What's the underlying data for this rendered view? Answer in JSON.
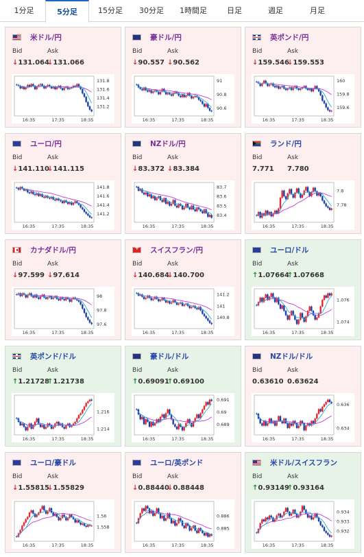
{
  "tabs": [
    {
      "label": "1分足"
    },
    {
      "label": "5分足",
      "active": true
    },
    {
      "label": "15分足"
    },
    {
      "label": "30分足"
    },
    {
      "label": "1時間足"
    },
    {
      "label": "日足"
    },
    {
      "label": "週足"
    },
    {
      "label": "月足"
    }
  ],
  "common": {
    "bid_label": "Bid",
    "ask_label": "Ask",
    "x_ticks": [
      "16:35",
      "17:35",
      "18:35"
    ]
  },
  "colors": {
    "down_bg": "#fdeef0",
    "up_bg": "#e8f3e8",
    "down_arrow": "#d42a2a",
    "up_arrow": "#1c8a2c",
    "bull_candle": "#e3262f",
    "bear_candle": "#1a3fa6",
    "ma_long": "#c23bd4",
    "ma_short": "#2aa7d8"
  },
  "cards": [
    {
      "pair": "米ドル/円",
      "flag": "us",
      "pair_color": "purple",
      "trend": "down",
      "bid": "131.064",
      "ask": "131.066",
      "bid_arrow": "↓",
      "ask_arrow": "↓",
      "y_ticks": [
        "131.8",
        "131.6",
        "131.4",
        "131.2"
      ],
      "series": [
        131.7,
        131.68,
        131.62,
        131.66,
        131.6,
        131.64,
        131.7,
        131.66,
        131.72,
        131.68,
        131.6,
        131.66,
        131.7,
        131.72,
        131.68,
        131.62,
        131.66,
        131.7,
        131.66,
        131.62,
        131.66,
        131.6,
        131.64,
        131.68,
        131.62,
        131.58,
        131.64,
        131.66,
        131.6,
        131.62,
        131.64,
        131.68,
        131.66,
        131.72,
        131.66,
        131.6,
        131.5,
        131.42,
        131.3,
        131.2,
        131.12,
        131.08
      ]
    },
    {
      "pair": "豪ドル/円",
      "flag": "au",
      "pair_color": "purple",
      "trend": "down",
      "bid": "90.557",
      "ask": "90.562",
      "bid_arrow": "↓",
      "ask_arrow": "↓",
      "y_ticks": [
        "91",
        "90.8",
        "90.6"
      ],
      "series": [
        90.94,
        90.9,
        90.88,
        90.86,
        90.9,
        90.86,
        90.84,
        90.86,
        90.82,
        90.84,
        90.86,
        90.84,
        90.8,
        90.84,
        90.88,
        90.84,
        90.8,
        90.82,
        90.8,
        90.78,
        90.82,
        90.84,
        90.82,
        90.78,
        90.76,
        90.8,
        90.76,
        90.78,
        90.82,
        90.78,
        90.74,
        90.76,
        90.78,
        90.76,
        90.72,
        90.7,
        90.66,
        90.62,
        90.66,
        90.6,
        90.56,
        90.55
      ]
    },
    {
      "pair": "英ポンド/円",
      "flag": "gb",
      "pair_color": "purple",
      "trend": "down",
      "bid": "159.546",
      "ask": "159.553",
      "bid_arrow": "↓",
      "ask_arrow": "↓",
      "y_ticks": [
        "160",
        "159.8",
        "159.6"
      ],
      "series": [
        159.98,
        159.96,
        159.92,
        159.96,
        160.0,
        159.96,
        159.92,
        159.94,
        159.96,
        159.92,
        159.9,
        159.92,
        159.88,
        159.9,
        159.92,
        159.88,
        159.86,
        159.88,
        159.9,
        159.86,
        159.9,
        159.92,
        159.88,
        159.86,
        159.88,
        159.9,
        159.92,
        159.88,
        159.86,
        159.88,
        159.84,
        159.88,
        159.92,
        159.88,
        159.84,
        159.78,
        159.7,
        159.66,
        159.6,
        159.56,
        159.54,
        159.55
      ]
    },
    {
      "pair": "ユーロ/円",
      "flag": "eu",
      "pair_color": "purple",
      "trend": "down",
      "bid": "141.110",
      "ask": "141.115",
      "bid_arrow": "↓",
      "ask_arrow": "↓",
      "y_ticks": [
        "141.8",
        "141.6",
        "141.4",
        "141.2"
      ],
      "series": [
        141.78,
        141.74,
        141.8,
        141.76,
        141.72,
        141.74,
        141.68,
        141.66,
        141.7,
        141.64,
        141.62,
        141.66,
        141.6,
        141.64,
        141.58,
        141.56,
        141.6,
        141.56,
        141.54,
        141.58,
        141.52,
        141.5,
        141.54,
        141.5,
        141.48,
        141.44,
        141.5,
        141.46,
        141.42,
        141.46,
        141.4,
        141.44,
        141.48,
        141.44,
        141.4,
        141.34,
        141.3,
        141.24,
        141.2,
        141.16,
        141.12,
        141.11
      ]
    },
    {
      "pair": "NZドル/円",
      "flag": "nz",
      "pair_color": "purple",
      "trend": "down",
      "bid": "83.372",
      "ask": "83.384",
      "bid_arrow": "↓",
      "ask_arrow": "↓",
      "y_ticks": [
        "83.7",
        "83.6",
        "83.5",
        "83.4"
      ],
      "series": [
        83.7,
        83.66,
        83.68,
        83.64,
        83.62,
        83.64,
        83.6,
        83.62,
        83.58,
        83.6,
        83.56,
        83.58,
        83.6,
        83.56,
        83.54,
        83.58,
        83.52,
        83.54,
        83.5,
        83.52,
        83.56,
        83.5,
        83.48,
        83.52,
        83.5,
        83.46,
        83.48,
        83.52,
        83.48,
        83.46,
        83.5,
        83.46,
        83.44,
        83.48,
        83.46,
        83.44,
        83.42,
        83.46,
        83.42,
        83.38,
        83.4,
        83.37
      ]
    },
    {
      "pair": "ランド/円",
      "flag": "za",
      "pair_color": "blue",
      "trend": "neutral",
      "bid": "7.771",
      "ask": "7.780",
      "bid_arrow": "",
      "ask_arrow": "",
      "y_ticks": [
        "7.8",
        "7.78"
      ],
      "series": [
        7.765,
        7.77,
        7.762,
        7.768,
        7.765,
        7.772,
        7.766,
        7.77,
        7.764,
        7.768,
        7.772,
        7.768,
        7.775,
        7.79,
        7.8,
        7.792,
        7.788,
        7.796,
        7.802,
        7.795,
        7.79,
        7.797,
        7.803,
        7.796,
        7.79,
        7.794,
        7.8,
        7.805,
        7.798,
        7.792,
        7.798,
        7.804,
        7.799,
        7.793,
        7.797,
        7.792,
        7.786,
        7.782,
        7.778,
        7.776,
        7.773,
        7.775
      ]
    },
    {
      "pair": "カナダドル/円",
      "flag": "ca",
      "pair_color": "purple",
      "trend": "down",
      "bid": "97.599",
      "ask": "97.614",
      "bid_arrow": "↓",
      "ask_arrow": "↓",
      "y_ticks": [
        "98",
        "97.8",
        "97.6"
      ],
      "series": [
        98.02,
        98.04,
        98.0,
        98.04,
        98.02,
        97.98,
        98.02,
        98.04,
        98.0,
        97.98,
        98.02,
        97.98,
        97.96,
        98.0,
        98.02,
        97.98,
        97.96,
        97.98,
        98.0,
        97.96,
        97.98,
        98.0,
        97.96,
        97.94,
        97.98,
        97.96,
        97.94,
        97.98,
        97.96,
        97.92,
        97.96,
        97.98,
        97.96,
        97.94,
        97.92,
        97.88,
        97.82,
        97.76,
        97.7,
        97.66,
        97.62,
        97.6
      ]
    },
    {
      "pair": "スイスフラン/円",
      "flag": "ch",
      "pair_color": "purple",
      "trend": "down",
      "bid": "140.684",
      "ask": "140.700",
      "bid_arrow": "↓",
      "ask_arrow": "↓",
      "y_ticks": [
        "141.2",
        "141",
        "140.8"
      ],
      "series": [
        141.22,
        141.18,
        141.2,
        141.16,
        141.12,
        141.14,
        141.18,
        141.14,
        141.1,
        141.12,
        141.16,
        141.12,
        141.08,
        141.1,
        141.14,
        141.1,
        141.06,
        141.08,
        141.04,
        141.06,
        141.1,
        141.06,
        141.02,
        141.04,
        141.06,
        141.0,
        141.02,
        141.04,
        141.0,
        140.96,
        140.98,
        141.0,
        140.96,
        140.94,
        140.98,
        140.92,
        140.86,
        140.82,
        140.78,
        140.74,
        140.7,
        140.68
      ]
    },
    {
      "pair": "ユーロ/ドル",
      "flag": "eu",
      "pair_color": "blue",
      "trend": "up",
      "bid": "1.07664",
      "ask": "1.07668",
      "bid_arrow": "↑",
      "ask_arrow": "↑",
      "y_ticks": [
        "1.076",
        "1.074"
      ],
      "series": [
        1.0755,
        1.0758,
        1.0762,
        1.0758,
        1.0762,
        1.0765,
        1.076,
        1.0763,
        1.0766,
        1.0762,
        1.0758,
        1.0762,
        1.0756,
        1.0752,
        1.0755,
        1.075,
        1.0746,
        1.0742,
        1.0746,
        1.075,
        1.0746,
        1.0742,
        1.0738,
        1.0742,
        1.0748,
        1.0744,
        1.074,
        1.0745,
        1.075,
        1.0754,
        1.075,
        1.0746,
        1.0742,
        1.0744,
        1.0748,
        1.0754,
        1.076,
        1.0764,
        1.0762,
        1.0766,
        1.0764,
        1.0766
      ]
    },
    {
      "pair": "英ポンド/ドル",
      "flag": "gb",
      "pair_color": "blue",
      "trend": "up",
      "bid": "1.21728",
      "ask": "1.21738",
      "bid_arrow": "↑",
      "ask_arrow": "↑",
      "y_ticks": [
        "1.216",
        "1.214"
      ],
      "series": [
        1.2152,
        1.2148,
        1.2144,
        1.2146,
        1.2142,
        1.2138,
        1.2142,
        1.2146,
        1.214,
        1.2144,
        1.2148,
        1.2152,
        1.2146,
        1.2142,
        1.2144,
        1.214,
        1.2142,
        1.2146,
        1.2144,
        1.214,
        1.2142,
        1.2146,
        1.2148,
        1.2144,
        1.2146,
        1.2142,
        1.214,
        1.2144,
        1.2146,
        1.2142,
        1.2144,
        1.2146,
        1.2148,
        1.2152,
        1.2156,
        1.2158,
        1.2162,
        1.2166,
        1.217,
        1.2172,
        1.2174,
        1.2173
      ]
    },
    {
      "pair": "豪ドル/ドル",
      "flag": "au",
      "pair_color": "blue",
      "trend": "up",
      "bid": "0.69091",
      "ask": "0.69100",
      "bid_arrow": "↑",
      "ask_arrow": "↑",
      "y_ticks": [
        "0.691",
        "0.69",
        "0.689"
      ],
      "series": [
        0.6902,
        0.6898,
        0.6894,
        0.6896,
        0.689,
        0.6894,
        0.6892,
        0.6888,
        0.6892,
        0.6889,
        0.6891,
        0.6894,
        0.6892,
        0.6896,
        0.6898,
        0.6895,
        0.6899,
        0.6902,
        0.6898,
        0.6894,
        0.689,
        0.6888,
        0.6886,
        0.689,
        0.6888,
        0.6885,
        0.6888,
        0.6891,
        0.6894,
        0.6891,
        0.6888,
        0.6892,
        0.6895,
        0.6898,
        0.6895,
        0.6899,
        0.6902,
        0.6905,
        0.6908,
        0.6906,
        0.691,
        0.6909
      ]
    },
    {
      "pair": "NZドル/ドル",
      "flag": "nz",
      "pair_color": "blue",
      "trend": "neutral",
      "bid": "0.63610",
      "ask": "0.63624",
      "bid_arrow": "",
      "ask_arrow": "",
      "y_ticks": [
        "0.636",
        "0.634"
      ],
      "series": [
        0.6352,
        0.6348,
        0.6344,
        0.6342,
        0.6346,
        0.6342,
        0.6344,
        0.6348,
        0.6344,
        0.6346,
        0.6342,
        0.6346,
        0.635,
        0.6346,
        0.6344,
        0.6348,
        0.6344,
        0.634,
        0.6344,
        0.6342,
        0.6346,
        0.6344,
        0.634,
        0.6342,
        0.6346,
        0.6344,
        0.6338,
        0.6342,
        0.6344,
        0.6342,
        0.6346,
        0.6344,
        0.6348,
        0.6352,
        0.6356,
        0.6354,
        0.6358,
        0.636,
        0.6362,
        0.6364,
        0.6362,
        0.6361
      ]
    },
    {
      "pair": "ユーロ/豪ドル",
      "flag": "eu",
      "pair_color": "blue",
      "trend": "down",
      "bid": "1.55815",
      "ask": "1.55829",
      "bid_arrow": "↓",
      "ask_arrow": "↓",
      "y_ticks": [
        "1.56",
        "1.558"
      ],
      "series": [
        1.5562,
        1.5568,
        1.5574,
        1.5582,
        1.5588,
        1.5594,
        1.5598,
        1.5606,
        1.561,
        1.5604,
        1.5598,
        1.5602,
        1.5606,
        1.5612,
        1.5618,
        1.561,
        1.5604,
        1.5608,
        1.5614,
        1.5606,
        1.56,
        1.5604,
        1.5598,
        1.5592,
        1.5596,
        1.5602,
        1.5598,
        1.5592,
        1.5596,
        1.5602,
        1.5598,
        1.5594,
        1.5588,
        1.5592,
        1.5588,
        1.5584,
        1.5586,
        1.5582,
        1.558,
        1.5584,
        1.5582,
        1.5582
      ]
    },
    {
      "pair": "ユーロ/英ポンド",
      "flag": "eu",
      "pair_color": "blue",
      "trend": "down",
      "bid": "0.88440",
      "ask": "0.88448",
      "bid_arrow": "↓",
      "ask_arrow": "↓",
      "y_ticks": [
        "0.886",
        "0.885"
      ],
      "series": [
        0.8854,
        0.8858,
        0.8862,
        0.8866,
        0.8864,
        0.8868,
        0.8866,
        0.8862,
        0.8864,
        0.886,
        0.8862,
        0.8866,
        0.8862,
        0.8858,
        0.886,
        0.8856,
        0.8858,
        0.8862,
        0.8858,
        0.8854,
        0.8856,
        0.8852,
        0.8854,
        0.8858,
        0.8856,
        0.8852,
        0.885,
        0.8854,
        0.8852,
        0.8848,
        0.885,
        0.8852,
        0.8848,
        0.8846,
        0.885,
        0.8848,
        0.8846,
        0.8844,
        0.8846,
        0.8843,
        0.8845,
        0.8844
      ]
    },
    {
      "pair": "米ドル/スイスフラン",
      "flag": "us",
      "pair_color": "blue",
      "trend": "up",
      "bid": "0.93149",
      "ask": "0.93164",
      "bid_arrow": "↑",
      "ask_arrow": "↑",
      "y_ticks": [
        "0.934",
        "0.933",
        "0.932"
      ],
      "series": [
        0.9318,
        0.9322,
        0.9328,
        0.9332,
        0.933,
        0.9334,
        0.9332,
        0.9336,
        0.9334,
        0.933,
        0.9332,
        0.9336,
        0.9338,
        0.9334,
        0.9336,
        0.934,
        0.9344,
        0.934,
        0.9336,
        0.9338,
        0.9342,
        0.9338,
        0.9334,
        0.9336,
        0.934,
        0.9346,
        0.9342,
        0.9338,
        0.9334,
        0.9336,
        0.9332,
        0.9334,
        0.9338,
        0.9334,
        0.933,
        0.9326,
        0.9324,
        0.932,
        0.9318,
        0.9316,
        0.9314,
        0.9315
      ]
    }
  ]
}
